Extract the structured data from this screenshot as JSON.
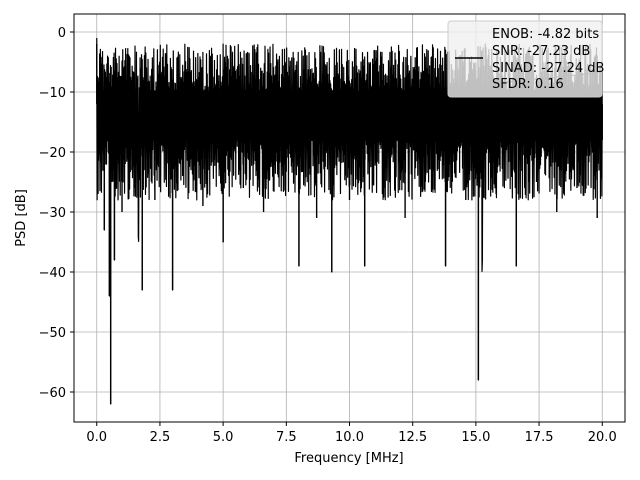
{
  "chart_data": {
    "type": "line",
    "title": "",
    "xlabel": "Frequency [MHz]",
    "ylabel": "PSD [dB]",
    "xlim": [
      -0.9,
      20.9
    ],
    "ylim": [
      -65,
      3
    ],
    "xticks": [
      0.0,
      2.5,
      5.0,
      7.5,
      10.0,
      12.5,
      15.0,
      17.5,
      20.0
    ],
    "xtick_labels": [
      "0.0",
      "2.5",
      "5.0",
      "7.5",
      "10.0",
      "12.5",
      "15.0",
      "17.5",
      "20.0"
    ],
    "yticks": [
      0,
      -10,
      -20,
      -30,
      -40,
      -50,
      -60
    ],
    "ytick_labels": [
      "0",
      "−10",
      "−20",
      "−30",
      "−40",
      "−50",
      "−60"
    ],
    "grid": true,
    "legend_position": "top-right",
    "line_color": "#000000",
    "legend": {
      "entries": [
        "ENOB: -4.82 bits",
        "SNR: -27.23 dB",
        "SINAD: -27.24 dB",
        "SFDR: 0.16"
      ]
    },
    "series": [
      {
        "values_note_free": true,
        "x": [
          0.0,
          0.05,
          0.1,
          0.15,
          0.2,
          0.3,
          0.4,
          0.5,
          0.55,
          0.6,
          0.7,
          0.85,
          1.0,
          1.2,
          1.5,
          1.8,
          2.0,
          2.3,
          2.6,
          3.0,
          3.1,
          3.4,
          3.8,
          4.2,
          4.6,
          5.0,
          5.4,
          5.8,
          6.2,
          6.6,
          7.0,
          7.4,
          7.8,
          8.0,
          8.3,
          8.7,
          9.0,
          9.3,
          9.6,
          10.0,
          10.4,
          10.6,
          11.0,
          11.4,
          11.8,
          12.2,
          12.6,
          13.0,
          13.4,
          13.8,
          14.2,
          14.6,
          15.0,
          15.1,
          15.4,
          15.8,
          16.2,
          16.6,
          17.0,
          17.4,
          17.8,
          18.2,
          18.6,
          19.0,
          19.4,
          19.8,
          20.0
        ],
        "y": [
          -2,
          -27,
          -10,
          -14,
          -18,
          -33,
          -20,
          -44,
          -62,
          -25,
          -38,
          -22,
          -30,
          -15,
          -26,
          -43,
          -20,
          -28,
          -14,
          -43,
          -18,
          -24,
          -12,
          -29,
          -17,
          -35,
          -13,
          -26,
          -9,
          -30,
          -14,
          -22,
          -12,
          -39,
          -16,
          -31,
          -5,
          -40,
          -15,
          -28,
          -11,
          -39,
          -17,
          -26,
          -10,
          -31,
          -14,
          -25,
          -12,
          -39,
          -21,
          -28,
          -13,
          -58,
          -20,
          -27,
          -15,
          -39,
          -18,
          -25,
          -12,
          -30,
          -16,
          -26,
          -14,
          -31,
          -18
        ]
      }
    ]
  }
}
